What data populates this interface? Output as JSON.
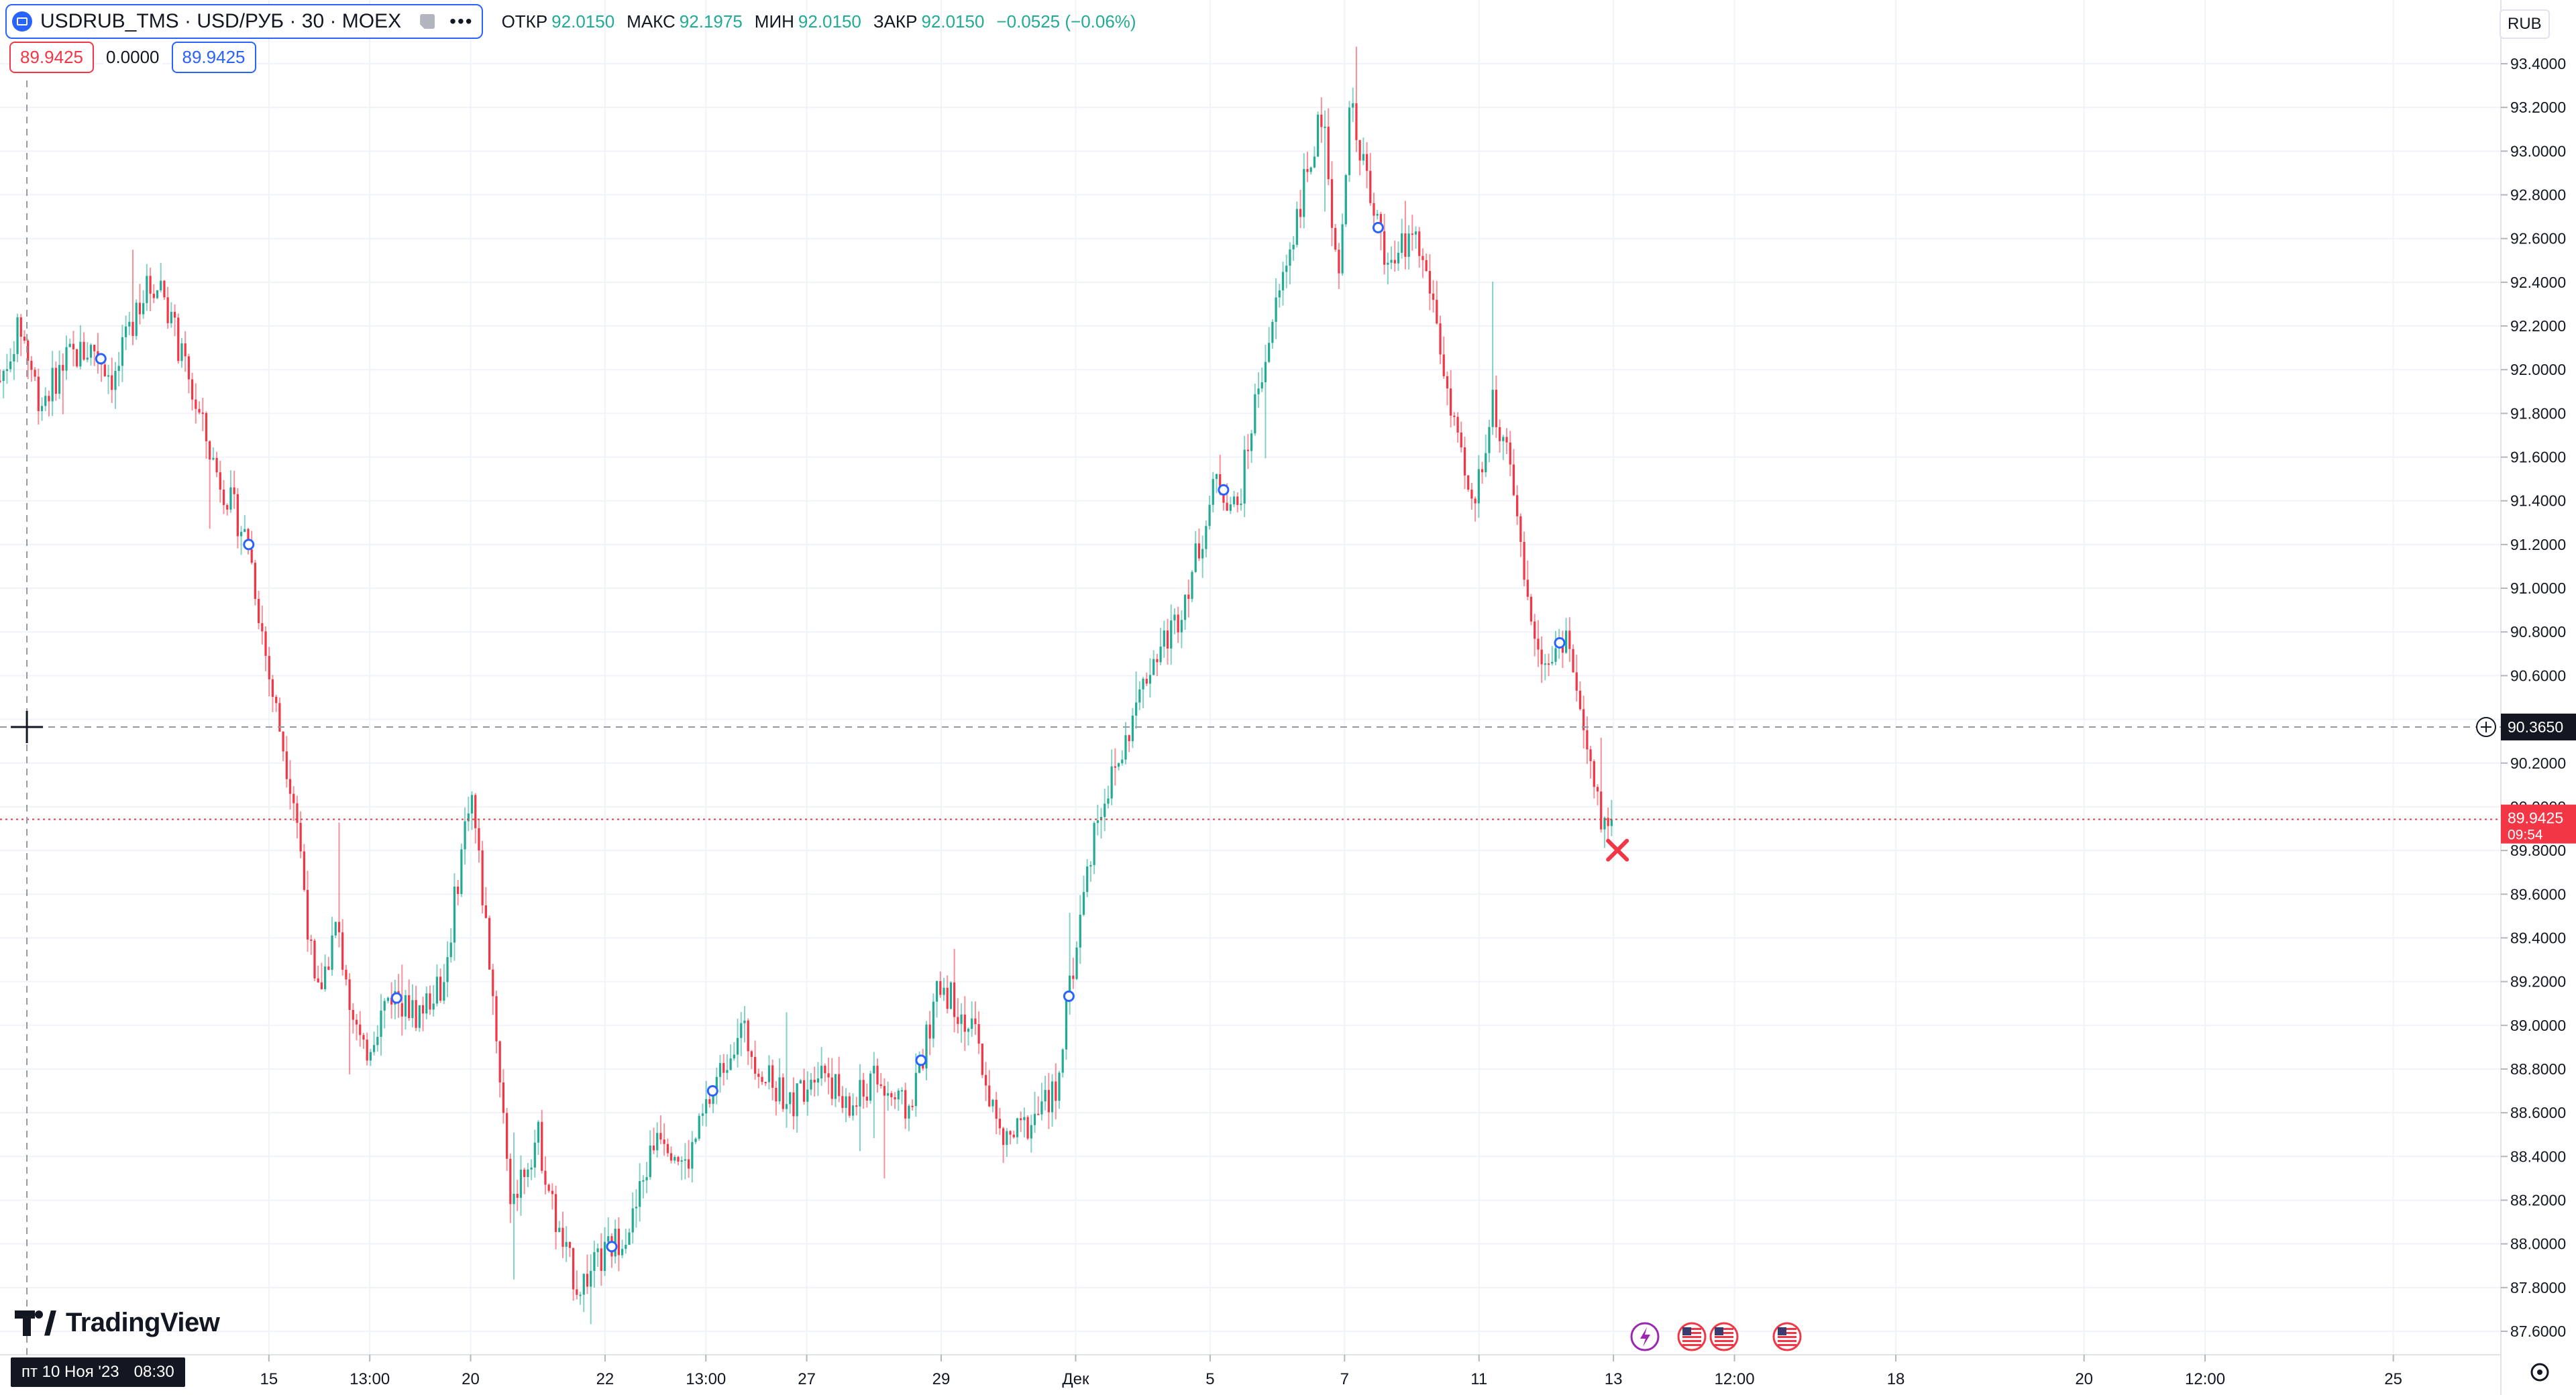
{
  "header": {
    "symbol": "USDRUB_TMS · USD/РУБ · 30 · MOEX",
    "more_label": "•••",
    "ohlc": [
      {
        "key": "ОТКР",
        "value": "92.0150"
      },
      {
        "key": "МАКС",
        "value": "92.1975"
      },
      {
        "key": "МИН",
        "value": "92.0150"
      },
      {
        "key": "ЗАКР",
        "value": "92.0150"
      }
    ],
    "change": "−0.0525 (−0.06%)"
  },
  "prices": {
    "bid": "89.9425",
    "spread": "0.0000",
    "ask": "89.9425"
  },
  "currency_label": "RUB",
  "crosshair": {
    "price_label": "90.3650",
    "date_label": "пт 10 Ноя '23",
    "time_label": "08:30"
  },
  "last_price": {
    "label": "89.9425",
    "countdown": "09:54"
  },
  "logo_text": "TradingView",
  "colors": {
    "up": "#22ab94",
    "down": "#f23645",
    "accent": "#2962ff",
    "grid": "#f0f3fa",
    "text": "#131722",
    "crosshair": "#9598a1"
  },
  "icons": [
    "chart-type-icon",
    "crosshair-plus-icon",
    "cross-marker-icon",
    "lightning-event-icon",
    "us-flag-event-icon",
    "settings-gear-icon"
  ],
  "chart_data": {
    "type": "candlestick",
    "interval": "30",
    "y_axis": {
      "min": 87.6,
      "max": 93.4,
      "step": 0.2,
      "ticks": [
        "93.4000",
        "93.2000",
        "93.0000",
        "92.8000",
        "92.6000",
        "92.4000",
        "92.2000",
        "92.0000",
        "91.8000",
        "91.6000",
        "91.4000",
        "91.2000",
        "91.0000",
        "90.8000",
        "90.6000",
        "90.4000",
        "90.2000",
        "90.0000",
        "89.8000",
        "89.6000",
        "89.4000",
        "89.2000",
        "89.0000",
        "88.8000",
        "88.6000",
        "88.4000",
        "88.2000",
        "88.0000",
        "87.8000",
        "87.6000"
      ]
    },
    "x_axis": {
      "labels": [
        {
          "t": 0.2,
          "label": "пт 10 Ноя '23"
        },
        {
          "t": 2.0,
          "label": "15"
        },
        {
          "t": 2.75,
          "label": "13:00"
        },
        {
          "t": 3.5,
          "label": "20"
        },
        {
          "t": 4.5,
          "label": "22"
        },
        {
          "t": 5.25,
          "label": "13:00"
        },
        {
          "t": 6.0,
          "label": "27"
        },
        {
          "t": 7.0,
          "label": "29"
        },
        {
          "t": 8.0,
          "label": "Дек"
        },
        {
          "t": 9.0,
          "label": "5"
        },
        {
          "t": 10.0,
          "label": "7"
        },
        {
          "t": 11.0,
          "label": "11"
        },
        {
          "t": 12.0,
          "label": "13"
        },
        {
          "t": 12.9,
          "label": "12:00"
        },
        {
          "t": 14.1,
          "label": "18"
        },
        {
          "t": 15.5,
          "label": "20"
        },
        {
          "t": 16.4,
          "label": "12:00"
        },
        {
          "t": 17.8,
          "label": "25"
        }
      ]
    },
    "price_path": [
      {
        "t": 0.0,
        "v": 91.95
      },
      {
        "t": 0.15,
        "v": 92.2
      },
      {
        "t": 0.3,
        "v": 91.85
      },
      {
        "t": 0.5,
        "v": 92.05
      },
      {
        "t": 0.7,
        "v": 92.1
      },
      {
        "t": 0.85,
        "v": 91.95
      },
      {
        "t": 1.05,
        "v": 92.35
      },
      {
        "t": 1.2,
        "v": 92.4
      },
      {
        "t": 1.35,
        "v": 92.05
      },
      {
        "t": 1.6,
        "v": 91.55
      },
      {
        "t": 1.85,
        "v": 91.2
      },
      {
        "t": 2.0,
        "v": 90.6
      },
      {
        "t": 2.2,
        "v": 90.0
      },
      {
        "t": 2.35,
        "v": 89.1
      },
      {
        "t": 2.5,
        "v": 89.45
      },
      {
        "t": 2.7,
        "v": 88.85
      },
      {
        "t": 2.9,
        "v": 89.15
      },
      {
        "t": 3.1,
        "v": 89.05
      },
      {
        "t": 3.3,
        "v": 89.2
      },
      {
        "t": 3.5,
        "v": 90.1
      },
      {
        "t": 3.65,
        "v": 89.25
      },
      {
        "t": 3.8,
        "v": 88.2
      },
      {
        "t": 4.0,
        "v": 88.5
      },
      {
        "t": 4.15,
        "v": 88.05
      },
      {
        "t": 4.3,
        "v": 87.8
      },
      {
        "t": 4.5,
        "v": 87.95
      },
      {
        "t": 4.7,
        "v": 88.1
      },
      {
        "t": 4.9,
        "v": 88.55
      },
      {
        "t": 5.1,
        "v": 88.35
      },
      {
        "t": 5.3,
        "v": 88.7
      },
      {
        "t": 5.5,
        "v": 89.0
      },
      {
        "t": 5.7,
        "v": 88.75
      },
      {
        "t": 5.9,
        "v": 88.65
      },
      {
        "t": 6.1,
        "v": 88.85
      },
      {
        "t": 6.3,
        "v": 88.6
      },
      {
        "t": 6.5,
        "v": 88.75
      },
      {
        "t": 6.75,
        "v": 88.6
      },
      {
        "t": 7.0,
        "v": 89.2
      },
      {
        "t": 7.25,
        "v": 88.95
      },
      {
        "t": 7.45,
        "v": 88.45
      },
      {
        "t": 7.65,
        "v": 88.55
      },
      {
        "t": 7.85,
        "v": 88.7
      },
      {
        "t": 8.0,
        "v": 89.35
      },
      {
        "t": 8.15,
        "v": 89.95
      },
      {
        "t": 8.35,
        "v": 90.25
      },
      {
        "t": 8.55,
        "v": 90.65
      },
      {
        "t": 8.75,
        "v": 90.85
      },
      {
        "t": 8.9,
        "v": 91.15
      },
      {
        "t": 9.05,
        "v": 91.5
      },
      {
        "t": 9.2,
        "v": 91.35
      },
      {
        "t": 9.35,
        "v": 91.9
      },
      {
        "t": 9.55,
        "v": 92.45
      },
      {
        "t": 9.7,
        "v": 92.85
      },
      {
        "t": 9.85,
        "v": 93.2
      },
      {
        "t": 9.95,
        "v": 92.35
      },
      {
        "t": 10.05,
        "v": 93.25
      },
      {
        "t": 10.2,
        "v": 92.75
      },
      {
        "t": 10.35,
        "v": 92.45
      },
      {
        "t": 10.5,
        "v": 92.65
      },
      {
        "t": 10.65,
        "v": 92.35
      },
      {
        "t": 10.8,
        "v": 91.75
      },
      {
        "t": 10.95,
        "v": 91.35
      },
      {
        "t": 11.1,
        "v": 91.85
      },
      {
        "t": 11.2,
        "v": 91.65
      },
      {
        "t": 11.35,
        "v": 90.95
      },
      {
        "t": 11.5,
        "v": 90.65
      },
      {
        "t": 11.65,
        "v": 90.8
      },
      {
        "t": 11.8,
        "v": 90.25
      },
      {
        "t": 11.9,
        "v": 89.95
      },
      {
        "t": 12.0,
        "v": 89.94
      }
    ],
    "last_price": 89.9425,
    "crosshair_price": 90.365,
    "visible_range": {
      "start": 0.0,
      "end": 18.6
    }
  }
}
